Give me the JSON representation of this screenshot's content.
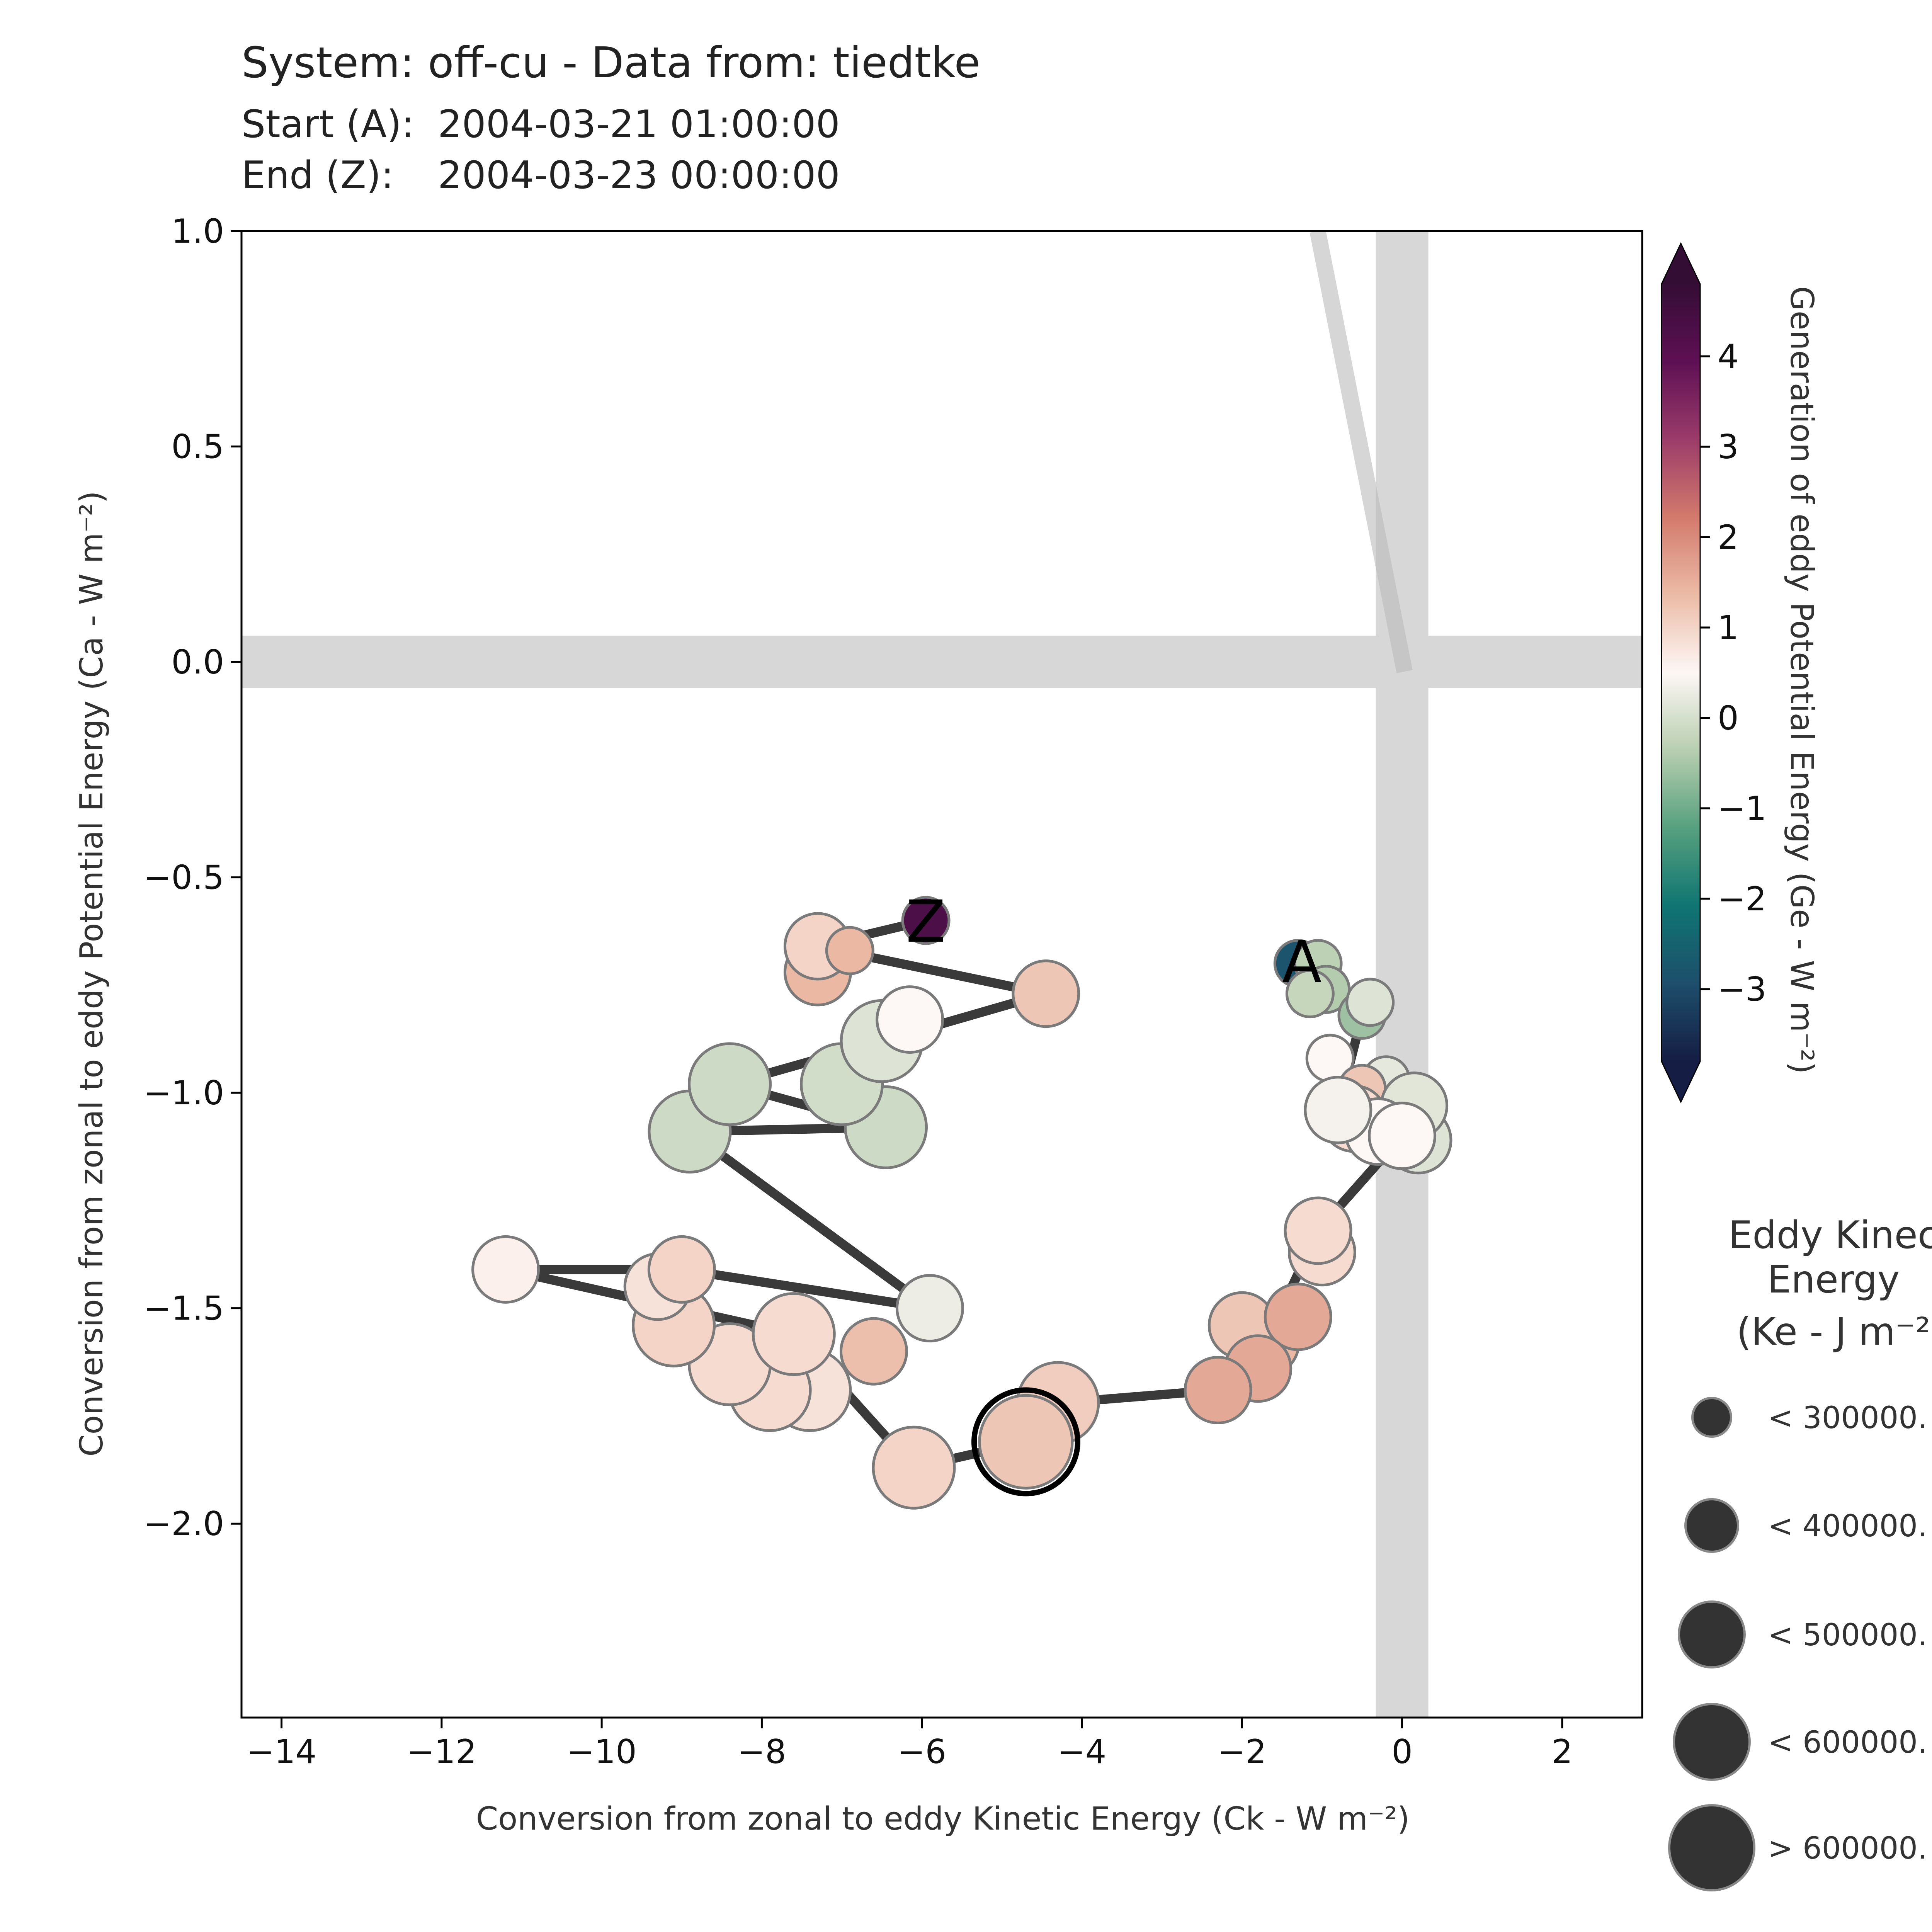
{
  "chart_data": {
    "type": "scatter",
    "title": "System: off-cu - Data from: tiedtke",
    "subtitle_start_label": "Start (A):",
    "subtitle_start_value": "2004-03-21 01:00:00",
    "subtitle_end_label": "End (Z):",
    "subtitle_end_value": "2004-03-23 00:00:00",
    "xlabel": "Conversion from zonal to eddy Kinetic Energy (Ck -  W m⁻²)",
    "ylabel": "Conversion from zonal to eddy Potential Energy (Ca -  W m⁻²)",
    "xlim": [
      -14.5,
      3
    ],
    "ylim": [
      -2.45,
      1.0
    ],
    "x_ticks": [
      -14,
      -12,
      -10,
      -8,
      -6,
      -4,
      -2,
      0,
      2
    ],
    "x_tick_labels": [
      "−14",
      "−12",
      "−10",
      "−8",
      "−6",
      "−4",
      "−2",
      "0",
      "2"
    ],
    "y_ticks": [
      1.0,
      0.5,
      0.0,
      -0.5,
      -1.0,
      -1.5,
      -2.0
    ],
    "y_tick_labels": [
      "1.0",
      "0.5",
      "0.0",
      "−0.5",
      "−1.0",
      "−1.5",
      "−2.0"
    ],
    "grid": false,
    "start_label": "A",
    "end_label": "Z",
    "colorbar": {
      "label": "Generation of eddy Potential Energy (Ge -  W m⁻²)",
      "vmin": -3.8,
      "vmax": 4.8,
      "ticks": [
        4,
        3,
        2,
        1,
        0,
        -1,
        -2,
        -3
      ],
      "tick_labels": [
        "4",
        "3",
        "2",
        "1",
        "0",
        "−1",
        "−2",
        "−3"
      ],
      "colormap": "curl",
      "stops": [
        "#151d44",
        "#1d4e6b",
        "#0f7572",
        "#56a07e",
        "#b8ceb0",
        "#fdf7f5",
        "#ebbba6",
        "#d37a6c",
        "#9b3c6a",
        "#5e1054",
        "#340d35"
      ],
      "extend": "both"
    },
    "size_legend": {
      "title_lines": [
        "Eddy Kinec",
        "Energy",
        "(Ke -  J m⁻²"
      ],
      "items": [
        "< 300000.",
        "< 400000.",
        "< 500000.",
        "< 600000.",
        "> 600000."
      ]
    },
    "reference_band_color": "#d7d7d7",
    "arrow_color": "#3a3a3a",
    "marker_edge_color": "#7a7a7a",
    "points": [
      {
        "x": -1.3,
        "y": -0.7,
        "ge": -2.8,
        "size": 1
      },
      {
        "x": -1.05,
        "y": -0.7,
        "ge": -0.3,
        "size": 1
      },
      {
        "x": -0.95,
        "y": -0.76,
        "ge": -0.4,
        "size": 1
      },
      {
        "x": -1.15,
        "y": -0.77,
        "ge": -0.2,
        "size": 1
      },
      {
        "x": -0.5,
        "y": -0.82,
        "ge": -0.6,
        "size": 1
      },
      {
        "x": -0.4,
        "y": -0.79,
        "ge": 0.1,
        "size": 1
      },
      {
        "x": -0.9,
        "y": -0.92,
        "ge": 0.5,
        "size": 1
      },
      {
        "x": -0.2,
        "y": -0.97,
        "ge": 0.2,
        "size": 1
      },
      {
        "x": -0.5,
        "y": -0.99,
        "ge": 1.2,
        "size": 1
      },
      {
        "x": -0.6,
        "y": -1.06,
        "ge": 0.9,
        "size": 2
      },
      {
        "x": 0.2,
        "y": -1.11,
        "ge": 0.1,
        "size": 2
      },
      {
        "x": 0.15,
        "y": -1.03,
        "ge": 0.15,
        "size": 2
      },
      {
        "x": -0.3,
        "y": -1.09,
        "ge": 0.5,
        "size": 2
      },
      {
        "x": -0.8,
        "y": -1.04,
        "ge": 0.4,
        "size": 2
      },
      {
        "x": 0.0,
        "y": -1.1,
        "ge": 0.5,
        "size": 2
      },
      {
        "x": -1.0,
        "y": -1.37,
        "ge": 0.9,
        "size": 2
      },
      {
        "x": -1.05,
        "y": -1.32,
        "ge": 0.9,
        "size": 2
      },
      {
        "x": -1.7,
        "y": -1.58,
        "ge": 1.4,
        "size": 2
      },
      {
        "x": -2.0,
        "y": -1.54,
        "ge": 1.2,
        "size": 2
      },
      {
        "x": -1.3,
        "y": -1.52,
        "ge": 1.6,
        "size": 2
      },
      {
        "x": -1.8,
        "y": -1.64,
        "ge": 1.6,
        "size": 2
      },
      {
        "x": -2.3,
        "y": -1.69,
        "ge": 1.6,
        "size": 2
      },
      {
        "x": -4.3,
        "y": -1.72,
        "ge": 1.1,
        "size": 3
      },
      {
        "x": -4.7,
        "y": -1.81,
        "ge": 1.2,
        "size": 4,
        "highlight": true
      },
      {
        "x": -6.1,
        "y": -1.87,
        "ge": 1.0,
        "size": 3
      },
      {
        "x": -7.4,
        "y": -1.69,
        "ge": 0.8,
        "size": 3
      },
      {
        "x": -7.9,
        "y": -1.69,
        "ge": 0.9,
        "size": 3
      },
      {
        "x": -8.4,
        "y": -1.63,
        "ge": 0.9,
        "size": 3
      },
      {
        "x": -6.6,
        "y": -1.6,
        "ge": 1.3,
        "size": 2
      },
      {
        "x": -7.6,
        "y": -1.56,
        "ge": 0.9,
        "size": 3
      },
      {
        "x": -9.1,
        "y": -1.54,
        "ge": 1.0,
        "size": 3
      },
      {
        "x": -9.3,
        "y": -1.45,
        "ge": 0.8,
        "size": 2
      },
      {
        "x": -9.0,
        "y": -1.41,
        "ge": 1.0,
        "size": 2
      },
      {
        "x": -11.2,
        "y": -1.41,
        "ge": 0.6,
        "size": 2
      },
      {
        "x": -5.9,
        "y": -1.5,
        "ge": 0.3,
        "size": 2
      },
      {
        "x": -8.9,
        "y": -1.09,
        "ge": -0.1,
        "size": 3
      },
      {
        "x": -8.4,
        "y": -0.98,
        "ge": -0.1,
        "size": 3
      },
      {
        "x": -6.45,
        "y": -1.08,
        "ge": -0.1,
        "size": 3
      },
      {
        "x": -7.0,
        "y": -0.98,
        "ge": -0.05,
        "size": 3
      },
      {
        "x": -6.5,
        "y": -0.88,
        "ge": 0.1,
        "size": 3
      },
      {
        "x": -6.15,
        "y": -0.83,
        "ge": 0.5,
        "size": 2
      },
      {
        "x": -4.45,
        "y": -0.77,
        "ge": 1.2,
        "size": 2
      },
      {
        "x": -7.3,
        "y": -0.72,
        "ge": 1.4,
        "size": 2
      },
      {
        "x": -7.3,
        "y": -0.66,
        "ge": 1.0,
        "size": 2
      },
      {
        "x": -6.9,
        "y": -0.67,
        "ge": 1.4,
        "size": 1
      },
      {
        "x": -5.95,
        "y": -0.6,
        "ge": 4.3,
        "size": 1
      }
    ],
    "arrows": [
      [
        -1.3,
        -0.7,
        -0.5,
        -0.82
      ],
      [
        -0.5,
        -0.82,
        -0.8,
        -1.04
      ],
      [
        -0.8,
        -1.04,
        0.0,
        -1.1
      ],
      [
        0.0,
        -1.1,
        -1.05,
        -1.32
      ],
      [
        -1.05,
        -1.32,
        -1.7,
        -1.58
      ],
      [
        -1.7,
        -1.58,
        -2.3,
        -1.69
      ],
      [
        -2.3,
        -1.69,
        -4.3,
        -1.72
      ],
      [
        -4.3,
        -1.72,
        -4.7,
        -1.81
      ],
      [
        -4.7,
        -1.81,
        -6.1,
        -1.87
      ],
      [
        -6.1,
        -1.87,
        -7.6,
        -1.56
      ],
      [
        -7.6,
        -1.56,
        -11.2,
        -1.41
      ],
      [
        -11.2,
        -1.41,
        -9.0,
        -1.41
      ],
      [
        -9.0,
        -1.41,
        -5.9,
        -1.5
      ],
      [
        -5.9,
        -1.5,
        -8.9,
        -1.09
      ],
      [
        -8.9,
        -1.09,
        -6.45,
        -1.08
      ],
      [
        -6.45,
        -1.08,
        -8.4,
        -0.98
      ],
      [
        -8.4,
        -0.98,
        -6.5,
        -0.88
      ],
      [
        -6.5,
        -0.88,
        -4.45,
        -0.77
      ],
      [
        -4.45,
        -0.77,
        -7.3,
        -0.66
      ],
      [
        -7.3,
        -0.66,
        -5.95,
        -0.6
      ]
    ]
  }
}
